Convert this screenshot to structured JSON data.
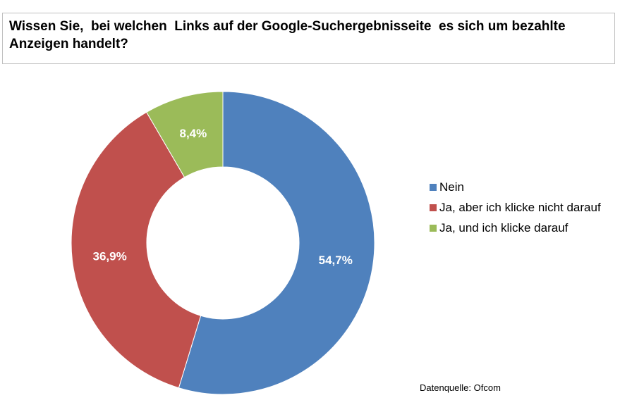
{
  "chart_data": {
    "type": "pie",
    "variant": "donut",
    "title": "Wissen Sie,  bei welchen  Links auf der Google-Suchergebnisseite  es sich um bezahlte Anzeigen handelt?",
    "slices": [
      {
        "label": "Nein",
        "value": 54.7,
        "display": "54,7%",
        "color": "#4f81bd"
      },
      {
        "label": "Ja, aber ich klicke nicht darauf",
        "value": 36.9,
        "display": "36,9%",
        "color": "#c0504d"
      },
      {
        "label": "Ja, und ich klicke darauf",
        "value": 8.4,
        "display": "8,4%",
        "color": "#9bbb59"
      }
    ],
    "legend_position": "right",
    "source": "Datenquelle: Ofcom"
  }
}
